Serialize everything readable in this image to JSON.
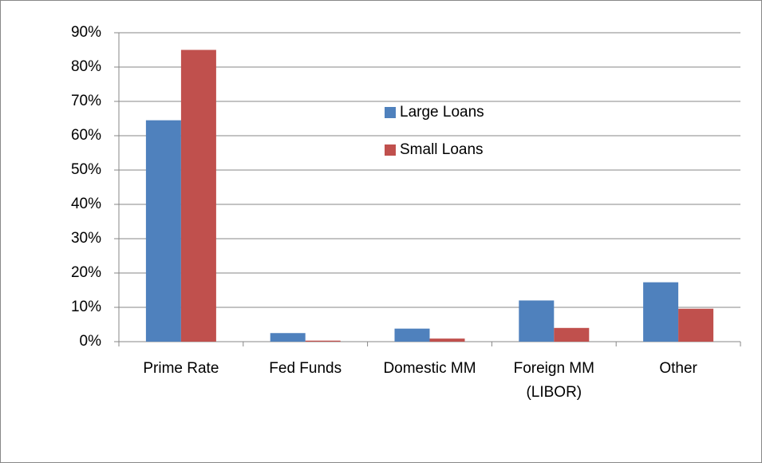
{
  "chart_data": {
    "type": "bar",
    "categories": [
      "Prime Rate",
      "Fed Funds",
      "Domestic MM",
      "Foreign MM (LIBOR)",
      "Other"
    ],
    "series": [
      {
        "name": "Large Loans",
        "color": "#4f81bd",
        "values": [
          64.5,
          2.5,
          3.8,
          12,
          17.3
        ]
      },
      {
        "name": "Small Loans",
        "color": "#c0504d",
        "values": [
          85,
          0.3,
          0.9,
          4,
          9.6
        ]
      }
    ],
    "ylim": [
      0,
      90
    ],
    "yticks": [
      {
        "value": 0,
        "label": "0%"
      },
      {
        "value": 10,
        "label": "10%"
      },
      {
        "value": 20,
        "label": "20%"
      },
      {
        "value": 30,
        "label": "30%"
      },
      {
        "value": 40,
        "label": "40%"
      },
      {
        "value": 50,
        "label": "50%"
      },
      {
        "value": 60,
        "label": "60%"
      },
      {
        "value": 70,
        "label": "70%"
      },
      {
        "value": 80,
        "label": "80%"
      },
      {
        "value": 90,
        "label": "90%"
      }
    ],
    "grid": true
  }
}
